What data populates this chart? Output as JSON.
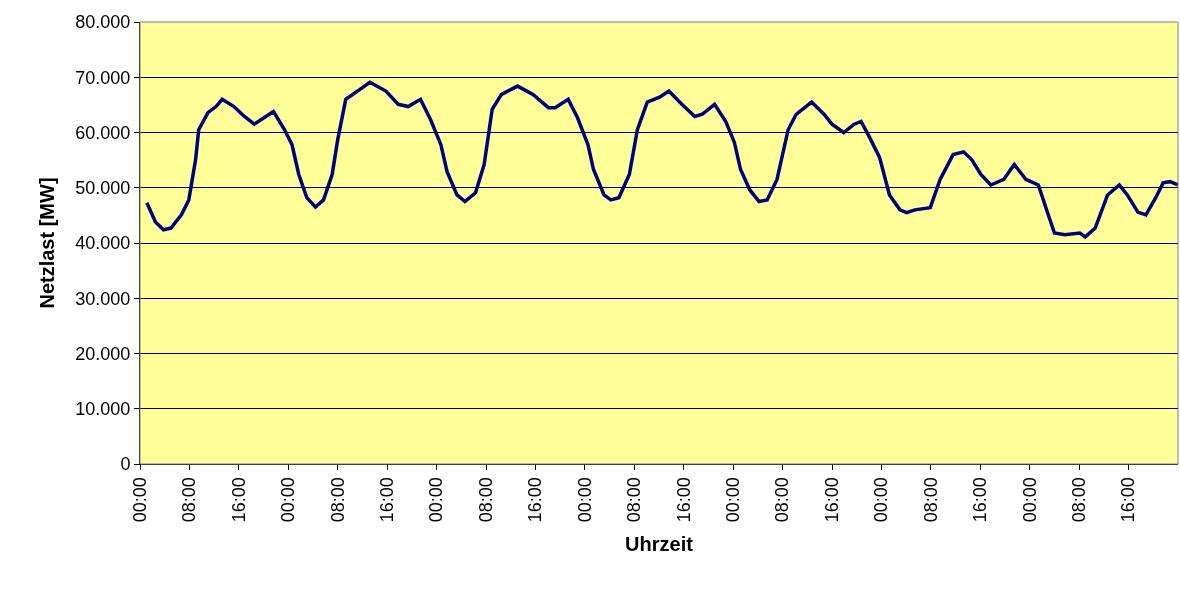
{
  "chart_data": {
    "type": "line",
    "xlabel": "Uhrzeit",
    "ylabel": "Netzlast [MW]",
    "x": [
      "--01-01T01:06",
      "--01-01T02:30",
      "--01-01T03:48",
      "--01-01T05:00",
      "--01-01T06:42",
      "--01-01T07:54",
      "--01-01T09:00",
      "--01-01T09:30",
      "--01-01T11:00",
      "--01-01T12:18",
      "--01-01T13:18",
      "--01-01T15:12",
      "--01-01T16:54",
      "--01-01T18:30",
      "--01-01T21:36",
      "--01-01T23:24",
      "--01-02T00:36",
      "--01-02T01:42",
      "--01-02T03:00",
      "--01-02T04:24",
      "--01-02T05:42",
      "--01-02T07:06",
      "--01-02T08:00",
      "--01-02T09:18",
      "--01-02T11:12",
      "--01-02T13:12",
      "--01-02T15:48",
      "--01-02T17:48",
      "--01-02T19:24",
      "--01-02T21:24",
      "--01-02T23:00",
      "--01-03T00:42",
      "--01-03T01:42",
      "--01-03T03:18",
      "--01-03T04:36",
      "--01-03T06:18",
      "--01-03T07:42",
      "--01-03T09:00",
      "--01-03T10:30",
      "--01-03T13:06",
      "--01-03T15:36",
      "--01-03T18:06",
      "--01-03T19:12",
      "--01-03T21:18",
      "--01-03T22:48",
      "--01-04T00:30",
      "--01-04T01:24",
      "--01-04T03:06",
      "--01-04T04:12",
      "--01-04T05:30",
      "--01-04T07:12",
      "--01-04T08:30",
      "--01-04T10:06",
      "--01-04T12:06",
      "--01-04T13:36",
      "--01-04T15:42",
      "--01-04T17:48",
      "--01-04T19:00",
      "--01-04T21:00",
      "--01-04T22:48",
      "--01-05T00:12",
      "--01-05T01:12",
      "--01-05T02:42",
      "--01-05T04:12",
      "--01-05T05:30",
      "--01-05T07:06",
      "--01-05T08:54",
      "--01-05T10:12",
      "--01-05T12:42",
      "--01-05T14:42",
      "--01-05T16:00",
      "--01-05T17:54",
      "--01-05T19:36",
      "--01-05T20:42",
      "--01-05T22:00",
      "--01-05T23:42",
      "--01-06T01:18",
      "--01-06T03:00",
      "--01-06T04:06",
      "--01-06T05:24",
      "--01-06T07:54",
      "--01-06T09:30",
      "--01-06T11:36",
      "--01-06T13:18",
      "--01-06T14:36",
      "--01-06T16:06",
      "--01-06T17:42",
      "--01-06T19:48",
      "--01-06T21:30",
      "--01-06T23:24",
      "--01-07T01:24",
      "--01-07T03:00",
      "--01-07T04:00",
      "--01-07T05:42",
      "--01-07T08:06",
      "--01-07T09:00",
      "--01-07T10:36",
      "--01-07T12:36",
      "--01-07T14:30",
      "--01-07T15:48",
      "--01-07T17:30",
      "--01-07T18:48",
      "--01-07T20:24",
      "--01-07T21:36",
      "--01-07T22:42",
      "--01-08T00:00"
    ],
    "series": [
      {
        "color": "#000080",
        "values": [
          47300,
          43800,
          42400,
          42700,
          45100,
          47800,
          55100,
          60500,
          63600,
          64700,
          66000,
          64700,
          62900,
          61500,
          63800,
          60500,
          57800,
          52400,
          48200,
          46500,
          47800,
          52400,
          58700,
          66000,
          67500,
          69100,
          67500,
          65100,
          64700,
          66000,
          62400,
          57800,
          52900,
          48700,
          47500,
          49100,
          54200,
          64200,
          66900,
          68400,
          66900,
          64500,
          64500,
          66000,
          62700,
          57800,
          53300,
          48700,
          47800,
          48200,
          52400,
          60500,
          65500,
          66400,
          67500,
          65100,
          62900,
          63300,
          65100,
          62000,
          58200,
          53300,
          49600,
          47500,
          47800,
          51500,
          60500,
          63300,
          65500,
          63300,
          61500,
          60000,
          61500,
          62000,
          59300,
          55500,
          48700,
          46000,
          45500,
          46000,
          46400,
          51500,
          56000,
          56500,
          55100,
          52400,
          50500,
          51500,
          54200,
          51500,
          50500,
          45100,
          41800,
          41500,
          41800,
          41100,
          42700,
          48700,
          50500,
          48700,
          45600,
          45100,
          48200,
          50900,
          51100,
          50500
        ]
      }
    ],
    "xlim": [
      "--01-01T00:00",
      "--01-08T00:00"
    ],
    "xticks": [
      {
        "value": "--01-01T00:00",
        "label": "00:00"
      },
      {
        "value": "--01-01T08:00",
        "label": "08:00"
      },
      {
        "value": "--01-01T16:00",
        "label": "16:00"
      },
      {
        "value": "--01-02T00:00",
        "label": "00:00"
      },
      {
        "value": "--01-02T08:00",
        "label": "08:00"
      },
      {
        "value": "--01-02T16:00",
        "label": "16:00"
      },
      {
        "value": "--01-03T00:00",
        "label": "00:00"
      },
      {
        "value": "--01-03T08:00",
        "label": "08:00"
      },
      {
        "value": "--01-03T16:00",
        "label": "16:00"
      },
      {
        "value": "--01-04T00:00",
        "label": "00:00"
      },
      {
        "value": "--01-04T08:00",
        "label": "08:00"
      },
      {
        "value": "--01-04T16:00",
        "label": "16:00"
      },
      {
        "value": "--01-05T00:00",
        "label": "00:00"
      },
      {
        "value": "--01-05T08:00",
        "label": "08:00"
      },
      {
        "value": "--01-05T16:00",
        "label": "16:00"
      },
      {
        "value": "--01-06T00:00",
        "label": "00:00"
      },
      {
        "value": "--01-06T08:00",
        "label": "08:00"
      },
      {
        "value": "--01-06T16:00",
        "label": "16:00"
      },
      {
        "value": "--01-07T00:00",
        "label": "00:00"
      },
      {
        "value": "--01-07T08:00",
        "label": "08:00"
      },
      {
        "value": "--01-07T16:00",
        "label": "16:00"
      }
    ],
    "ylim": [
      0,
      80000
    ],
    "yticks": [
      0,
      {
        "value": 10000,
        "label": "10.000"
      },
      {
        "value": 20000,
        "label": "20.000"
      },
      {
        "value": 30000,
        "label": "30.000"
      },
      {
        "value": 40000,
        "label": "40.000"
      },
      {
        "value": 50000,
        "label": "50.000"
      },
      {
        "value": 60000,
        "label": "60.000"
      },
      {
        "value": 70000,
        "label": "70.000"
      },
      {
        "value": 80000,
        "label": "80.000"
      }
    ],
    "grid": "y",
    "marker": "none",
    "line_style": "solid"
  }
}
